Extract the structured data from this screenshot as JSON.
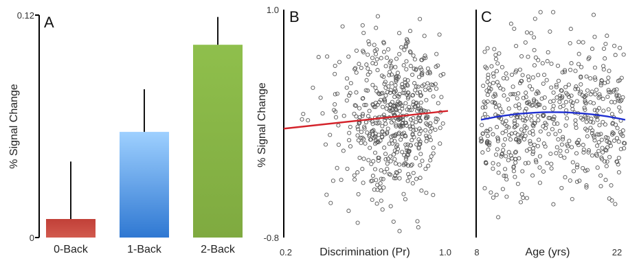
{
  "chart_data": [
    {
      "panel": "A",
      "type": "bar",
      "ylabel": "% Signal Change",
      "ylim": [
        0,
        0.12
      ],
      "yticks": [
        "0",
        "0.12"
      ],
      "categories": [
        "0-Back",
        "1-Back",
        "2-Back"
      ],
      "values": [
        0.01,
        0.057,
        0.104
      ],
      "errors": [
        0.031,
        0.023,
        0.015
      ],
      "colors": [
        "#c7423a",
        "#4a8fe0",
        "#8db54a"
      ]
    },
    {
      "panel": "B",
      "type": "scatter",
      "ylabel": "% Signal Change",
      "xlabel": "Discrimination (Pr)",
      "xlim": [
        0.2,
        1.0
      ],
      "ylim": [
        -0.8,
        1.0
      ],
      "xticks": [
        "0.2",
        "1.0"
      ],
      "yticks": [
        "1.0",
        "-0.8"
      ],
      "fit": {
        "kind": "linear",
        "x": [
          0.2,
          1.0
        ],
        "y": [
          0.06,
          0.2
        ],
        "color": "#d4232b"
      },
      "marker_color": "#555555",
      "seed": 7,
      "point_count": 560
    },
    {
      "panel": "C",
      "type": "scatter",
      "xlabel": "Age (yrs)",
      "xlim": [
        8,
        22
      ],
      "ylim": [
        -0.8,
        1.0
      ],
      "xticks": [
        "8",
        "22"
      ],
      "fit": {
        "kind": "quadratic",
        "x": [
          8,
          15,
          22
        ],
        "y": [
          0.13,
          0.19,
          0.13
        ],
        "color": "#1f2fd0"
      },
      "marker_color": "#555555",
      "seed": 19,
      "point_count": 560
    }
  ]
}
